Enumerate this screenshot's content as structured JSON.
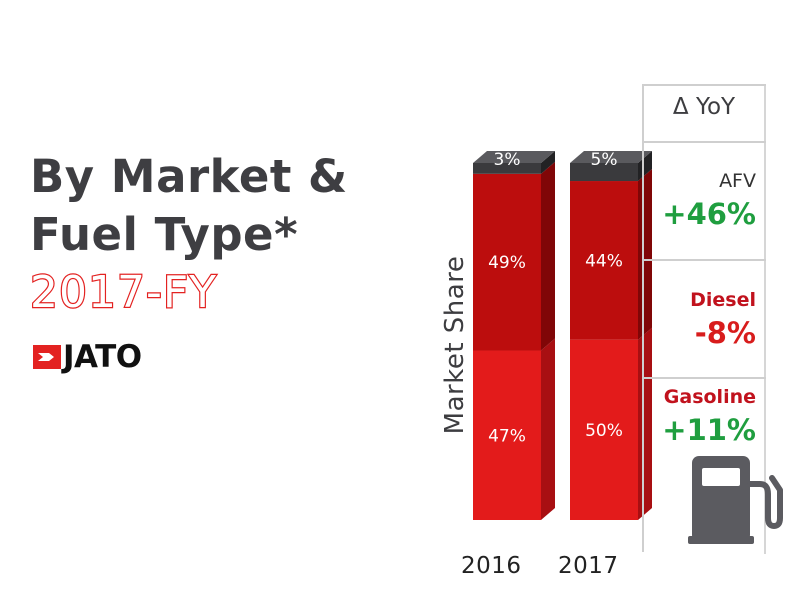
{
  "title_lines": [
    "By Market &",
    "Fuel Type*"
  ],
  "subtitle": "2017-FY",
  "brand": "JATO",
  "colors": {
    "gasoline": "#e31b1b",
    "diesel": "#bc0d0d",
    "afv": "#3a3a3d",
    "positive": "#1f9e3f",
    "negative": "#d81c1c",
    "title": "#3e3e42"
  },
  "yoy": {
    "header": "Δ YoY",
    "items": [
      {
        "name": "AFV",
        "value": "+46%",
        "tone": "positive"
      },
      {
        "name": "Diesel",
        "value": "-8%",
        "tone": "negative"
      },
      {
        "name": "Gasoline",
        "value": "+11%",
        "tone": "positive"
      }
    ]
  },
  "icons": [
    "jato-logo-icon",
    "fuel-pump-icon"
  ],
  "chart_data": {
    "type": "bar",
    "stacked": true,
    "categories": [
      "2016",
      "2017"
    ],
    "ylabel": "Market Share",
    "xlabel": "",
    "series": [
      {
        "name": "Gasoline",
        "values": [
          47,
          50
        ],
        "labels": [
          "47%",
          "50%"
        ]
      },
      {
        "name": "Diesel",
        "values": [
          49,
          44
        ],
        "labels": [
          "49%",
          "44%"
        ]
      },
      {
        "name": "AFV",
        "values": [
          3,
          5
        ],
        "labels": [
          "3%",
          "5%"
        ]
      }
    ]
  }
}
